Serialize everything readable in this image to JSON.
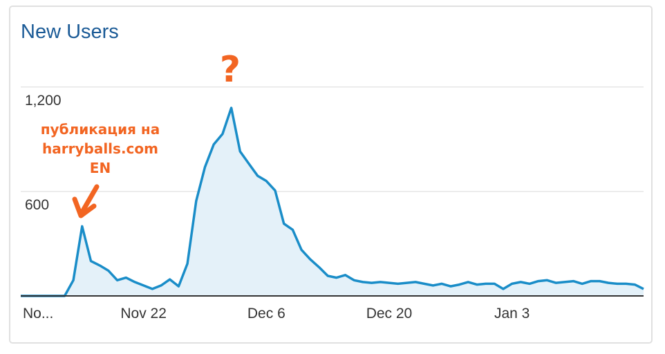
{
  "widget": {
    "title": "New Users"
  },
  "annotations": {
    "note_lines": [
      "публикация на",
      "harryballs.com",
      "EN"
    ],
    "question": "?"
  },
  "colors": {
    "line": "#1a8dc8",
    "fill": "#e4f1f9",
    "grid": "#e6e6e6",
    "annotation": "#f26522",
    "title": "#1a5a96"
  },
  "chart_data": {
    "type": "area",
    "title": "New Users",
    "ylim": [
      0,
      1350
    ],
    "yticks": [
      600,
      1200
    ],
    "ytick_labels": [
      "600",
      "1,200"
    ],
    "xtick_labels": [
      "No...",
      "Nov 22",
      "Dec 6",
      "Dec 20",
      "Jan 3"
    ],
    "xtick_index": [
      0,
      14,
      28,
      42,
      56
    ],
    "grid": true,
    "series": [
      {
        "values": [
          0,
          0,
          0,
          0,
          0,
          0,
          90,
          400,
          200,
          175,
          145,
          90,
          105,
          80,
          60,
          40,
          60,
          95,
          55,
          185,
          545,
          740,
          870,
          930,
          1080,
          830,
          760,
          690,
          660,
          605,
          415,
          380,
          265,
          210,
          165,
          115,
          105,
          120,
          90,
          80,
          75,
          80,
          75,
          70,
          75,
          80,
          70,
          60,
          70,
          55,
          65,
          80,
          65,
          70,
          70,
          40,
          70,
          80,
          70,
          85,
          90,
          75,
          80,
          85,
          70,
          85,
          85,
          75,
          70,
          70,
          65,
          40
        ]
      }
    ]
  }
}
